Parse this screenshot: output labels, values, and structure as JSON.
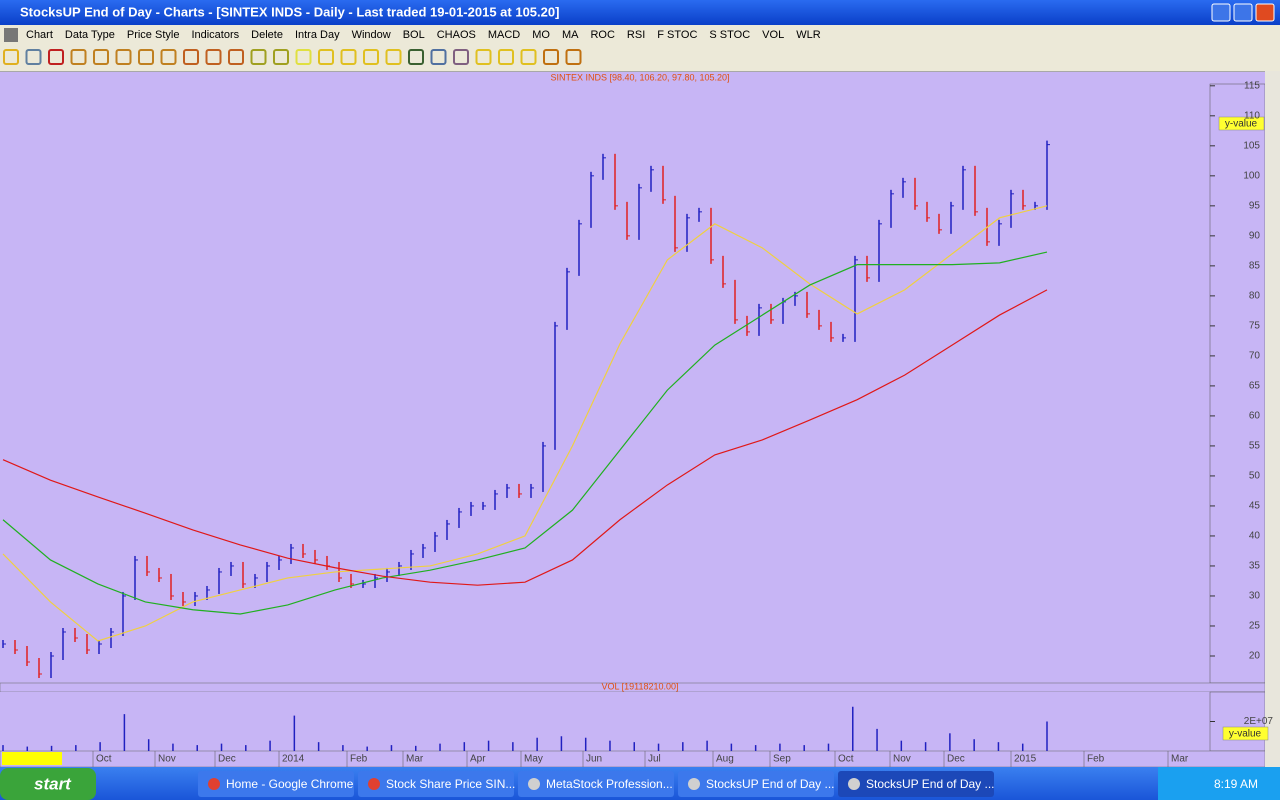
{
  "window": {
    "title": "StocksUP End of Day - Charts - [SINTEX INDS - Daily - Last traded 19-01-2015 at 105.20]"
  },
  "menu": [
    "Chart",
    "Data Type",
    "Price Style",
    "Indicators",
    "Delete",
    "Intra Day",
    "Window",
    "BOL",
    "CHAOS",
    "MACD",
    "MO",
    "MA",
    "ROC",
    "RSI",
    "F STOC",
    "S STOC",
    "VOL",
    "WLR"
  ],
  "chart_data": {
    "type": "ohlc",
    "title": "SINTEX INDS [98.40, 106.20, 97.80, 105.20]",
    "x_labels": [
      "Oct",
      "Nov",
      "Dec",
      "2014",
      "Feb",
      "Mar",
      "Apr",
      "May",
      "Jun",
      "Jul",
      "Aug",
      "Sep",
      "Oct",
      "Nov",
      "Dec",
      "2015",
      "Feb",
      "Mar"
    ],
    "values": [
      22,
      21,
      19,
      17,
      20,
      24,
      23,
      21,
      22,
      24,
      30,
      36,
      34,
      33,
      30,
      29,
      30,
      31,
      34,
      35,
      32,
      33,
      35,
      36,
      38,
      37,
      36,
      35,
      33,
      32,
      32,
      33,
      34,
      35,
      37,
      38,
      40,
      42,
      44,
      45,
      45,
      47,
      48,
      47,
      48,
      55,
      75,
      84,
      92,
      100,
      103,
      95,
      90,
      98,
      101,
      96,
      88,
      93,
      94,
      86,
      82,
      76,
      74,
      78,
      76,
      79,
      80,
      77,
      75,
      73,
      73,
      86,
      83,
      92,
      97,
      99,
      95,
      93,
      91,
      95,
      101,
      94,
      89,
      92,
      97,
      95,
      95,
      105.2
    ],
    "up_color": "#2020c0",
    "down_color": "#e02020",
    "moving_averages": [
      {
        "color": "#f0d040",
        "values": [
          37,
          29,
          22.5,
          25,
          29,
          31,
          33,
          34,
          34.5,
          35,
          37,
          40,
          55,
          72,
          86,
          92,
          88,
          82,
          77,
          81,
          87,
          93,
          95
        ]
      },
      {
        "color": "#20b020",
        "values": [
          42.7,
          36,
          32,
          29,
          27.7,
          27,
          28.5,
          31,
          33,
          34.3,
          36,
          38,
          44.3,
          54.3,
          64.3,
          71.8,
          76.8,
          81.8,
          85.2,
          85.2,
          85.2,
          85.5,
          87.3
        ]
      },
      {
        "color": "#e01818",
        "values": [
          52.7,
          49.3,
          46.5,
          43.8,
          41,
          38.5,
          36.3,
          34.7,
          33.3,
          32.3,
          31.8,
          32.3,
          36,
          42.7,
          48.5,
          53.5,
          56,
          59.3,
          62.7,
          66.8,
          71.8,
          76.8,
          81
        ]
      }
    ],
    "ylim": [
      15.5,
      115.3
    ],
    "yticks": [
      20,
      25,
      30,
      35,
      40,
      45,
      50,
      55,
      60,
      65,
      70,
      75,
      80,
      85,
      90,
      95,
      100,
      105,
      110,
      115
    ],
    "cursor_label": "y-value",
    "volume": {
      "title": "VOL [19118210.00]",
      "color": "#2020c0",
      "values": [
        4000000,
        3000000,
        3500000,
        4000000,
        6000000,
        25000000,
        8000000,
        5000000,
        4000000,
        5000000,
        4000000,
        7000000,
        24000000,
        6000000,
        4000000,
        3000000,
        4000000,
        3500000,
        5000000,
        6000000,
        7000000,
        6000000,
        9000000,
        10000000,
        9000000,
        7000000,
        6000000,
        5000000,
        6000000,
        7000000,
        5000000,
        4000000,
        5000000,
        4000000,
        5000000,
        30000000,
        15000000,
        7000000,
        6000000,
        12000000,
        8000000,
        6000000,
        5000000,
        20000000
      ],
      "ylim": [
        0,
        40000000
      ],
      "yticks": [
        {
          "value": 20000000,
          "label": "2E+07"
        }
      ]
    }
  },
  "taskbar": {
    "start": "start",
    "items": [
      "Home - Google Chrome",
      "Stock Share Price SIN...",
      "MetaStock Profession...",
      "StocksUP End of Day ...",
      "StocksUP End of Day ..."
    ],
    "clock": "8:19 AM"
  }
}
